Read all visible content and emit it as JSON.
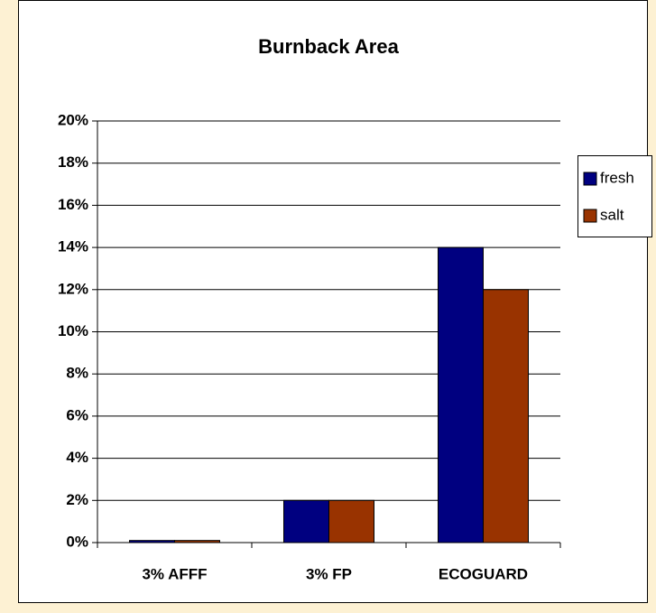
{
  "chart_data": {
    "type": "bar",
    "title": "Burnback Area",
    "categories": [
      "3% AFFF",
      "3% FP",
      "ECOGUARD"
    ],
    "series": [
      {
        "name": "fresh",
        "color": "#000080",
        "values": [
          0.1,
          2,
          14
        ]
      },
      {
        "name": "salt",
        "color": "#993300",
        "values": [
          0.1,
          2,
          12
        ]
      }
    ],
    "ylim": [
      0,
      20
    ],
    "yticks": [
      {
        "value": 0,
        "label": "0%"
      },
      {
        "value": 2,
        "label": "2%"
      },
      {
        "value": 4,
        "label": "4%"
      },
      {
        "value": 6,
        "label": "6%"
      },
      {
        "value": 8,
        "label": "8%"
      },
      {
        "value": 10,
        "label": "10%"
      },
      {
        "value": 12,
        "label": "12%"
      },
      {
        "value": 14,
        "label": "14%"
      },
      {
        "value": 16,
        "label": "16%"
      },
      {
        "value": 18,
        "label": "18%"
      },
      {
        "value": 20,
        "label": "20%"
      }
    ],
    "grid": true,
    "legend": "right"
  }
}
